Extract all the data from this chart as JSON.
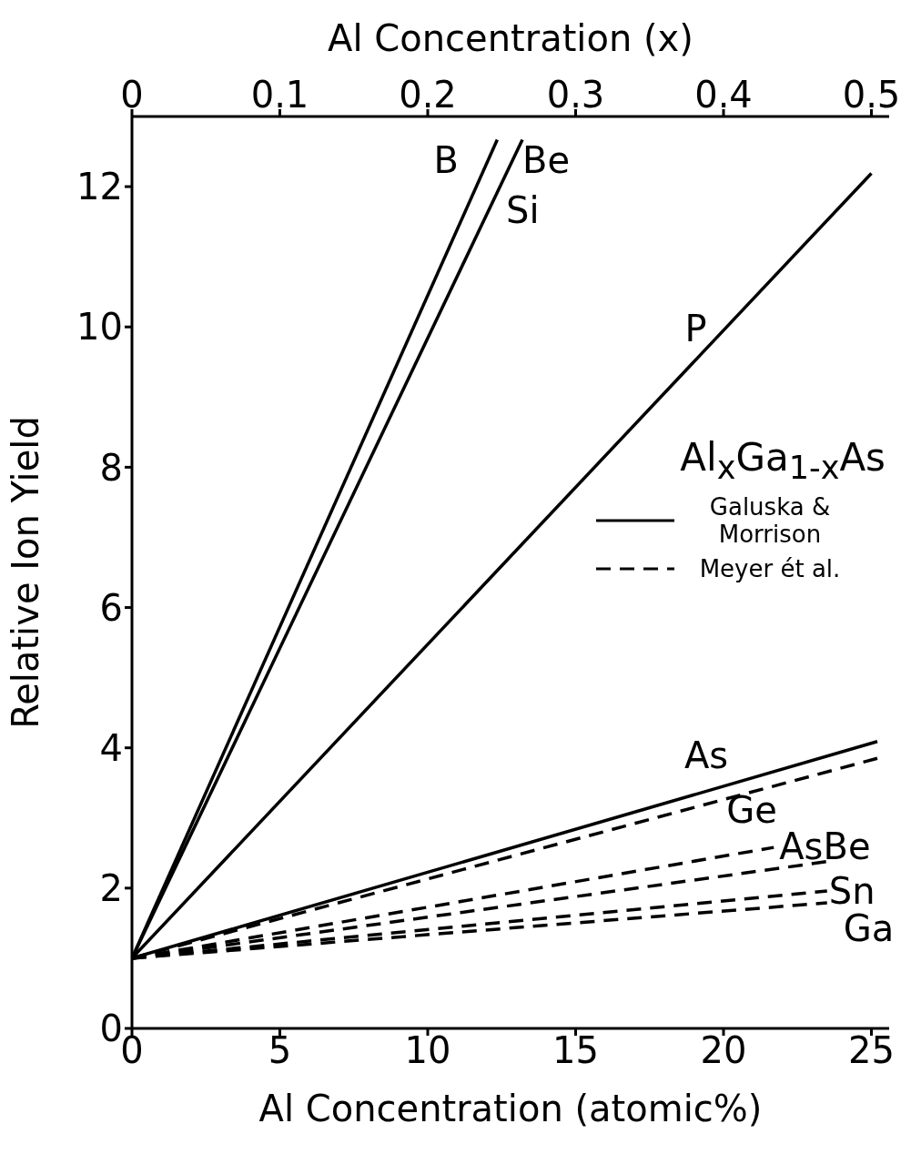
{
  "chart_data": {
    "type": "line",
    "xlabel": "Al Concentration (atomic%)",
    "x2label": "Al Concentration (x)",
    "ylabel": "Relative Ion Yield",
    "legend_title": "Al$_{x}$Ga$_{1-x}$As",
    "legend": "right",
    "xlim": [
      0,
      25.6
    ],
    "xticks": [
      0,
      5,
      10,
      15,
      20,
      25
    ],
    "x2lim": [
      0,
      0.512
    ],
    "x2ticks": [
      0,
      0.1,
      0.2,
      0.3,
      0.4,
      0.5
    ],
    "ylim": [
      0,
      13
    ],
    "yticks": [
      0,
      2,
      4,
      6,
      8,
      10,
      12
    ],
    "grid": false,
    "marker": "none",
    "annotations": [
      "Si",
      "Galuska & Morrison",
      "Meyer ét al."
    ],
    "series": [
      {
        "name": "B",
        "color": "#000000",
        "line_style": "solid",
        "x": [
          0,
          12.35
        ],
        "values": [
          1,
          12.67
        ]
      },
      {
        "name": "Be",
        "color": "#000000",
        "line_style": "solid",
        "x": [
          0,
          13.2
        ],
        "values": [
          1,
          12.67
        ]
      },
      {
        "name": "P",
        "color": "#000000",
        "line_style": "solid",
        "x": [
          0,
          25
        ],
        "values": [
          1,
          12.19
        ]
      },
      {
        "name": "As",
        "color": "#000000",
        "line_style": "solid",
        "x": [
          0,
          25.2
        ],
        "values": [
          1,
          4.09
        ]
      },
      {
        "color": "#000000",
        "line_style": "dashed",
        "x": [
          0,
          25.2
        ],
        "values": [
          1,
          3.85
        ]
      },
      {
        "name": "Ge",
        "color": "#000000",
        "line_style": "dashed",
        "x": [
          0,
          21.7
        ],
        "values": [
          1,
          2.58
        ]
      },
      {
        "name": "AsBe",
        "color": "#000000",
        "line_style": "dashed",
        "x": [
          0,
          23.7
        ],
        "values": [
          1,
          2.39
        ]
      },
      {
        "name": "Sn",
        "color": "#000000",
        "line_style": "dashed",
        "x": [
          0,
          23.5
        ],
        "values": [
          1,
          1.96
        ]
      },
      {
        "name": "Ga",
        "color": "#000000",
        "line_style": "dashed",
        "x": [
          0,
          23.5
        ],
        "values": [
          1,
          1.79
        ]
      }
    ]
  }
}
